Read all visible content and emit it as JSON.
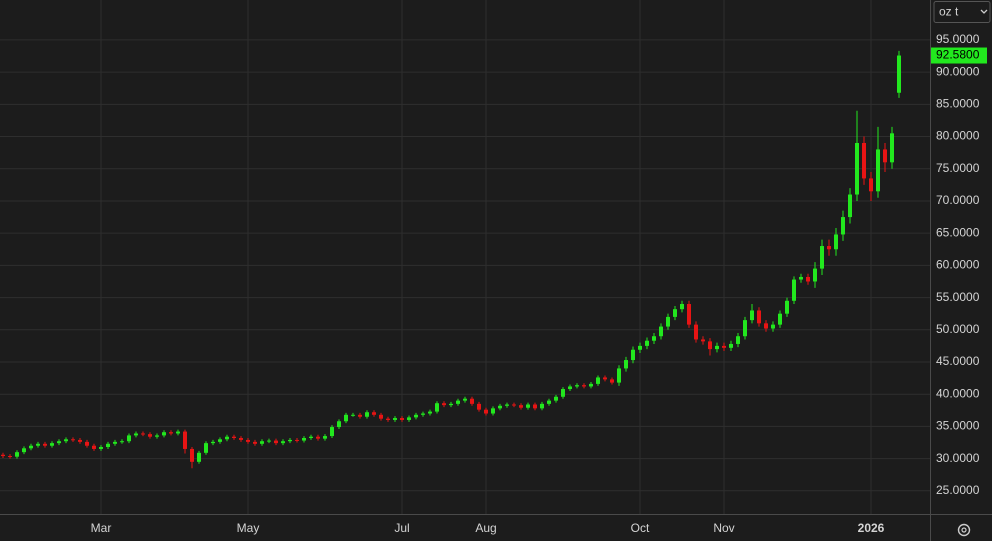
{
  "chart_data": {
    "type": "candlestick",
    "categories": [
      null,
      null,
      null,
      null,
      null,
      null,
      null,
      null,
      null,
      null,
      null,
      null,
      null,
      null,
      "Mar",
      null,
      null,
      null,
      null,
      null,
      null,
      null,
      null,
      null,
      null,
      null,
      null,
      null,
      null,
      null,
      null,
      null,
      null,
      null,
      null,
      "May",
      null,
      null,
      null,
      null,
      null,
      null,
      null,
      null,
      null,
      null,
      null,
      null,
      null,
      null,
      null,
      null,
      null,
      null,
      null,
      null,
      null,
      "Jul",
      null,
      null,
      null,
      null,
      null,
      null,
      null,
      null,
      null,
      null,
      null,
      "Aug",
      null,
      null,
      null,
      null,
      null,
      null,
      null,
      null,
      null,
      null,
      null,
      null,
      null,
      null,
      null,
      null,
      null,
      null,
      null,
      null,
      null,
      "Oct",
      null,
      null,
      null,
      null,
      null,
      null,
      null,
      null,
      null,
      null,
      null,
      "Nov",
      null,
      null,
      null,
      null,
      null,
      null,
      null,
      null,
      null,
      null,
      null,
      null,
      null,
      null,
      null,
      null,
      null,
      null,
      null,
      null,
      "2026",
      null,
      null,
      null,
      null
    ],
    "open": [
      30.6,
      30.4,
      30.3,
      31.0,
      31.6,
      32.0,
      32.3,
      32.0,
      32.4,
      32.7,
      33.0,
      32.9,
      32.6,
      32.0,
      31.5,
      31.8,
      32.3,
      32.6,
      32.7,
      33.6,
      33.9,
      33.8,
      33.4,
      33.6,
      34.1,
      33.9,
      34.2,
      31.5,
      29.5,
      30.9,
      32.4,
      32.6,
      33.0,
      33.4,
      33.2,
      32.9,
      32.6,
      32.3,
      32.7,
      32.8,
      32.4,
      32.7,
      32.9,
      32.8,
      33.2,
      33.4,
      33.1,
      33.5,
      34.9,
      35.8,
      36.8,
      36.8,
      36.5,
      37.2,
      36.8,
      36.2,
      36.0,
      36.3,
      36.0,
      36.4,
      36.8,
      37.0,
      37.3,
      38.6,
      38.3,
      38.5,
      39.0,
      39.3,
      38.5,
      37.6,
      37.0,
      37.8,
      38.2,
      38.4,
      38.3,
      37.9,
      38.4,
      37.8,
      38.5,
      39.0,
      39.6,
      40.8,
      41.2,
      41.4,
      41.2,
      41.6,
      42.6,
      42.3,
      41.8,
      44.0,
      45.3,
      46.9,
      47.5,
      48.3,
      49.0,
      50.5,
      52.0,
      53.2,
      54.0,
      50.8,
      48.5,
      48.2,
      47.0,
      47.5,
      47.2,
      47.8,
      49.0,
      51.5,
      53.0,
      51.0,
      50.2,
      50.8,
      52.5,
      54.5,
      57.8,
      58.2,
      57.5,
      59.5,
      63.0,
      62.5,
      64.8,
      67.5,
      71.0,
      79.0,
      73.5,
      71.5,
      78.0,
      76.0,
      86.8
    ],
    "high": [
      30.9,
      30.7,
      31.3,
      31.9,
      32.3,
      32.6,
      32.6,
      32.7,
      33.0,
      33.3,
      33.3,
      33.2,
      32.9,
      32.3,
      32.1,
      32.6,
      32.9,
      33.0,
      33.9,
      34.2,
      34.2,
      34.1,
      33.9,
      34.4,
      34.4,
      34.5,
      34.5,
      31.8,
      31.2,
      32.7,
      32.9,
      33.3,
      33.7,
      33.7,
      33.5,
      33.2,
      32.9,
      33.0,
      33.1,
      33.1,
      33.0,
      33.2,
      33.2,
      33.5,
      33.7,
      33.7,
      33.8,
      35.2,
      36.1,
      37.1,
      37.1,
      37.1,
      37.5,
      37.5,
      37.1,
      36.5,
      36.6,
      36.6,
      36.7,
      37.1,
      37.3,
      37.6,
      38.9,
      38.9,
      38.8,
      39.3,
      39.6,
      39.6,
      38.8,
      37.9,
      38.1,
      38.5,
      38.7,
      38.7,
      38.6,
      38.7,
      38.7,
      38.8,
      39.3,
      39.9,
      41.1,
      41.5,
      41.7,
      41.7,
      41.9,
      42.9,
      42.9,
      42.6,
      44.5,
      45.8,
      47.4,
      48.0,
      48.8,
      49.5,
      51.0,
      52.5,
      53.7,
      54.5,
      54.5,
      51.3,
      49.0,
      48.7,
      48.0,
      48.0,
      48.3,
      49.5,
      52.0,
      54.0,
      53.5,
      51.5,
      51.3,
      53.0,
      55.0,
      58.3,
      58.7,
      58.7,
      60.5,
      64.0,
      64.0,
      65.8,
      68.5,
      72.0,
      84.0,
      80.0,
      74.5,
      81.5,
      79.0,
      81.5,
      93.3
    ],
    "low": [
      30.1,
      30.0,
      30.0,
      30.7,
      31.3,
      31.7,
      31.7,
      31.7,
      32.1,
      32.4,
      32.6,
      32.3,
      31.7,
      31.2,
      31.2,
      31.5,
      32.0,
      32.3,
      32.4,
      33.3,
      33.5,
      33.1,
      33.1,
      33.3,
      33.6,
      33.6,
      30.8,
      28.5,
      29.2,
      30.6,
      32.1,
      32.3,
      32.7,
      32.9,
      32.6,
      32.3,
      32.0,
      32.0,
      32.4,
      32.1,
      32.1,
      32.4,
      32.5,
      32.5,
      32.9,
      32.8,
      32.8,
      33.2,
      34.6,
      35.5,
      36.5,
      36.2,
      36.2,
      36.5,
      35.9,
      35.7,
      35.7,
      35.7,
      35.7,
      36.1,
      36.5,
      36.7,
      37.0,
      38.0,
      38.0,
      38.2,
      38.7,
      38.2,
      37.3,
      36.7,
      36.7,
      37.5,
      37.9,
      38.0,
      37.6,
      37.6,
      37.5,
      37.5,
      38.2,
      38.7,
      39.3,
      40.5,
      40.9,
      40.9,
      40.9,
      41.3,
      42.0,
      41.5,
      41.3,
      43.5,
      44.8,
      46.4,
      47.0,
      47.8,
      48.5,
      50.0,
      51.5,
      52.7,
      50.3,
      48.0,
      47.7,
      46.0,
      46.5,
      46.7,
      46.7,
      47.3,
      48.5,
      51.0,
      50.5,
      49.7,
      49.7,
      50.3,
      52.0,
      54.0,
      57.3,
      57.0,
      56.5,
      58.5,
      61.5,
      61.5,
      63.8,
      66.5,
      70.0,
      72.5,
      70.0,
      70.5,
      74.5,
      75.0,
      86.0
    ],
    "close": [
      30.4,
      30.3,
      31.0,
      31.6,
      32.0,
      32.3,
      32.0,
      32.4,
      32.7,
      33.0,
      32.9,
      32.6,
      32.0,
      31.5,
      31.8,
      32.3,
      32.6,
      32.7,
      33.6,
      33.9,
      33.8,
      33.4,
      33.6,
      34.1,
      33.9,
      34.2,
      31.5,
      29.5,
      30.9,
      32.4,
      32.6,
      33.0,
      33.4,
      33.2,
      32.9,
      32.6,
      32.3,
      32.7,
      32.8,
      32.4,
      32.7,
      32.9,
      32.8,
      33.2,
      33.4,
      33.1,
      33.5,
      34.9,
      35.8,
      36.8,
      36.8,
      36.5,
      37.2,
      36.8,
      36.2,
      36.0,
      36.3,
      36.0,
      36.4,
      36.8,
      37.0,
      37.3,
      38.6,
      38.3,
      38.5,
      39.0,
      39.3,
      38.5,
      37.6,
      37.0,
      37.8,
      38.2,
      38.4,
      38.3,
      37.9,
      38.4,
      37.8,
      38.5,
      39.0,
      39.6,
      40.8,
      41.2,
      41.4,
      41.2,
      41.6,
      42.6,
      42.3,
      41.8,
      44.0,
      45.3,
      46.9,
      47.5,
      48.3,
      49.0,
      50.5,
      52.0,
      53.2,
      54.0,
      50.8,
      48.5,
      48.2,
      47.0,
      47.5,
      47.2,
      47.8,
      49.0,
      51.5,
      53.0,
      51.0,
      50.2,
      50.8,
      52.5,
      54.5,
      57.8,
      58.2,
      57.5,
      59.5,
      63.0,
      62.5,
      64.8,
      67.5,
      71.0,
      79.0,
      73.5,
      71.5,
      78.0,
      76.0,
      80.5,
      92.58
    ],
    "up_color": "#22e81e",
    "down_color": "#e81414",
    "ylim": [
      21.4,
      101.2
    ],
    "yticks": [
      {
        "value": 25,
        "label": "25.0000"
      },
      {
        "value": 30,
        "label": "30.0000"
      },
      {
        "value": 35,
        "label": "35.0000"
      },
      {
        "value": 40,
        "label": "40.0000"
      },
      {
        "value": 45,
        "label": "45.0000"
      },
      {
        "value": 50,
        "label": "50.0000"
      },
      {
        "value": 55,
        "label": "55.0000"
      },
      {
        "value": 60,
        "label": "60.0000"
      },
      {
        "value": 65,
        "label": "65.0000"
      },
      {
        "value": 70,
        "label": "70.0000"
      },
      {
        "value": 75,
        "label": "75.0000"
      },
      {
        "value": 80,
        "label": "80.0000"
      },
      {
        "value": 85,
        "label": "85.0000"
      },
      {
        "value": 90,
        "label": "90.0000"
      },
      {
        "value": 95,
        "label": "95.0000"
      }
    ],
    "last_price": {
      "value": 92.58,
      "label": "92.5800"
    },
    "grid": true
  },
  "toolbar": {
    "unit": "oz t"
  }
}
